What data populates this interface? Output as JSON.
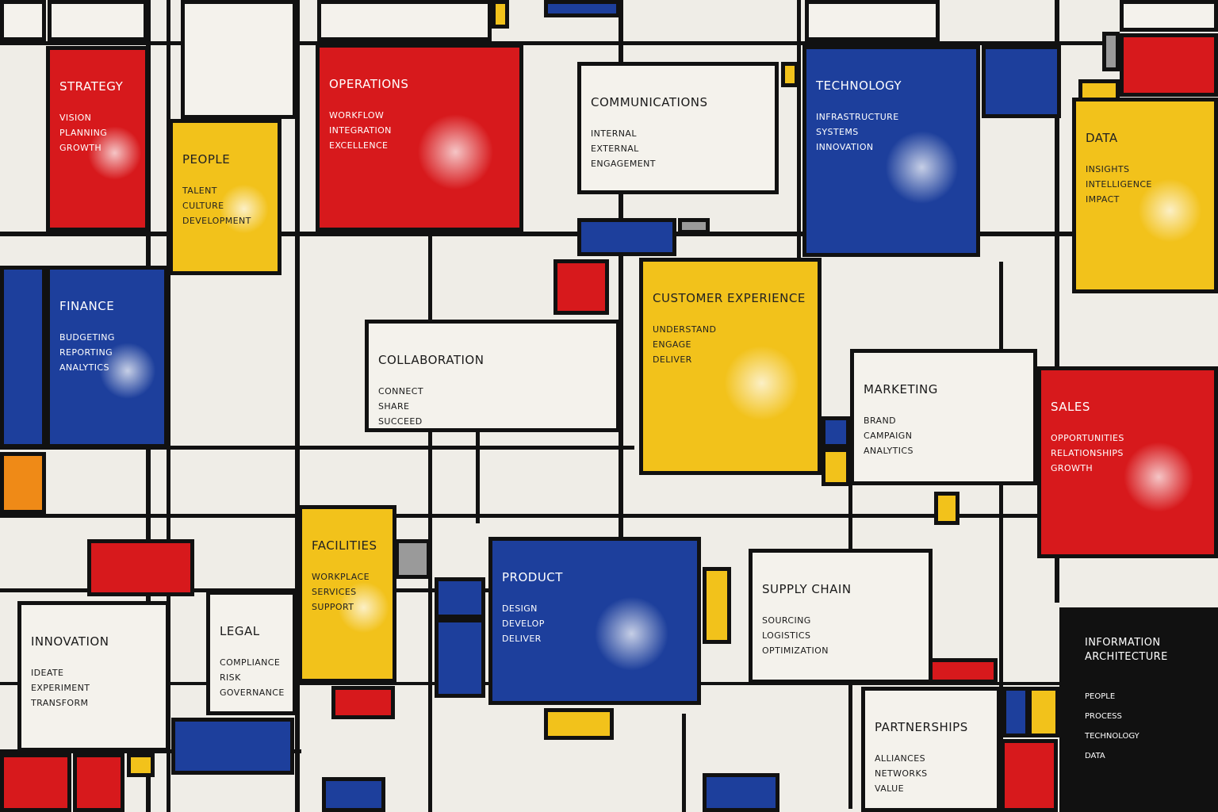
{
  "panels": [
    {
      "title": "STRATEGY",
      "items": [
        "VISION",
        "PLANNING",
        "GROWTH"
      ]
    },
    {
      "title": "OPERATIONS",
      "items": [
        "WORKFLOW",
        "INTEGRATION",
        "EXCELLENCE"
      ]
    },
    {
      "title": "COMMUNICATIONS",
      "items": [
        "INTERNAL",
        "EXTERNAL",
        "ENGAGEMENT"
      ]
    },
    {
      "title": "TECHNOLOGY",
      "items": [
        "INFRASTRUCTURE",
        "SYSTEMS",
        "INNOVATION"
      ]
    },
    {
      "title": "DATA",
      "items": [
        "INSIGHTS",
        "INTELLIGENCE",
        "IMPACT"
      ]
    },
    {
      "title": "PEOPLE",
      "items": [
        "TALENT",
        "CULTURE",
        "DEVELOPMENT"
      ]
    },
    {
      "title": "FINANCE",
      "items": [
        "BUDGETING",
        "REPORTING",
        "ANALYTICS"
      ]
    },
    {
      "title": "COLLABORATION",
      "items": [
        "CONNECT",
        "SHARE",
        "SUCCEED"
      ]
    },
    {
      "title": "CUSTOMER EXPERIENCE",
      "items": [
        "UNDERSTAND",
        "ENGAGE",
        "DELIVER"
      ]
    },
    {
      "title": "MARKETING",
      "items": [
        "BRAND",
        "CAMPAIGN",
        "ANALYTICS"
      ]
    },
    {
      "title": "SALES",
      "items": [
        "OPPORTUNITIES",
        "RELATIONSHIPS",
        "GROWTH"
      ]
    },
    {
      "title": "FACILITIES",
      "items": [
        "WORKPLACE",
        "SERVICES",
        "SUPPORT"
      ]
    },
    {
      "title": "PRODUCT",
      "items": [
        "DESIGN",
        "DEVELOP",
        "DELIVER"
      ]
    },
    {
      "title": "SUPPLY CHAIN",
      "items": [
        "SOURCING",
        "LOGISTICS",
        "OPTIMIZATION"
      ]
    },
    {
      "title": "INNOVATION",
      "items": [
        "IDEATE",
        "EXPERIMENT",
        "TRANSFORM"
      ]
    },
    {
      "title": "LEGAL",
      "items": [
        "COMPLIANCE",
        "RISK",
        "GOVERNANCE"
      ]
    },
    {
      "title": "PARTNERSHIPS",
      "items": [
        "ALLIANCES",
        "NETWORKS",
        "VALUE"
      ]
    }
  ],
  "legend": {
    "title": "INFORMATION ARCHITECTURE",
    "entries": [
      {
        "label": "PEOPLE",
        "color": "#d7191c"
      },
      {
        "label": "PROCESS",
        "color": "#1d3f9c"
      },
      {
        "label": "TECHNOLOGY",
        "color": "#f2c21b"
      },
      {
        "label": "DATA",
        "color": "#888888"
      }
    ]
  }
}
